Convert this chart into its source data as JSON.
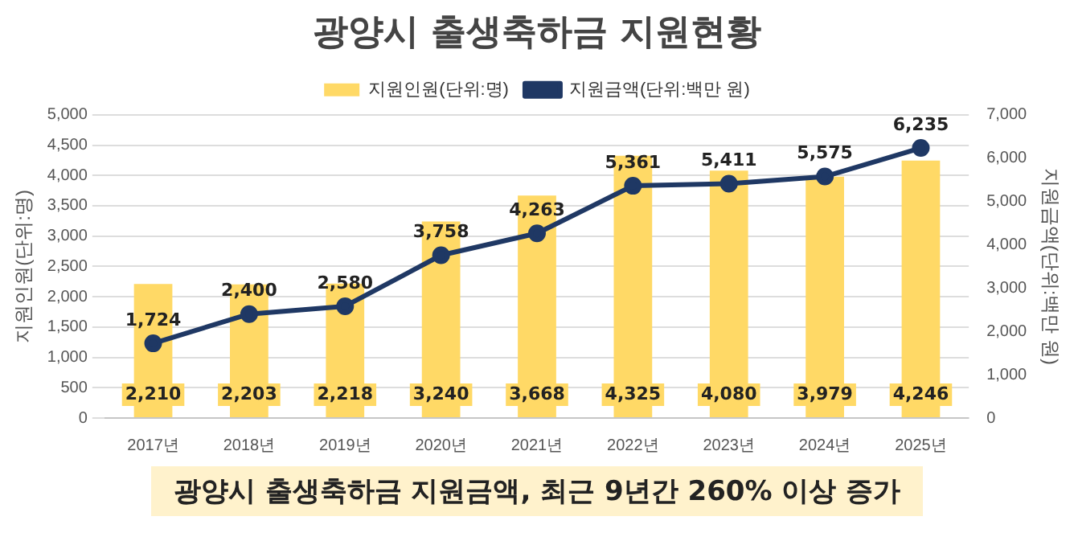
{
  "chart_data": {
    "type": "bar",
    "title": "광양시 출생축하금 지원현황",
    "xlabel": null,
    "ylabel": "지원인원(단위:명)",
    "y2label": "지원금액(단위:백만 원)",
    "categories": [
      "2017년",
      "2018년",
      "2019년",
      "2020년",
      "2021년",
      "2022년",
      "2023년",
      "2024년",
      "2025년"
    ],
    "series": [
      {
        "name": "지원인원(단위:명)",
        "color": "#ffd966",
        "values": [
          2210,
          2203,
          2218,
          3240,
          3668,
          4325,
          4080,
          3979,
          4246
        ],
        "value_labels": [
          "2,210",
          "2,203",
          "2,218",
          "3,240",
          "3,668",
          "4,325",
          "4,080",
          "3,979",
          "4,246"
        ]
      },
      {
        "name": "지원금액(단위:백만 원)",
        "type": "line",
        "axis": "y2",
        "color": "#1f3864",
        "values": [
          1724,
          2400,
          2580,
          3758,
          4263,
          5361,
          5411,
          5575,
          6235
        ],
        "value_labels": [
          "1,724",
          "2,400",
          "2,580",
          "3,758",
          "4,263",
          "5,361",
          "5,411",
          "5,575",
          "6,235"
        ]
      }
    ],
    "ylim": [
      0,
      5000
    ],
    "yticks": [
      {
        "value": 0,
        "label": "0"
      },
      {
        "value": 500,
        "label": "500"
      },
      {
        "value": 1000,
        "label": "1,000"
      },
      {
        "value": 1500,
        "label": "1,500"
      },
      {
        "value": 2000,
        "label": "2,000"
      },
      {
        "value": 2500,
        "label": "2,500"
      },
      {
        "value": 3000,
        "label": "3,000"
      },
      {
        "value": 3500,
        "label": "3,500"
      },
      {
        "value": 4000,
        "label": "4,000"
      },
      {
        "value": 4500,
        "label": "4,500"
      },
      {
        "value": 5000,
        "label": "5,000"
      }
    ],
    "y2lim": [
      0,
      7000
    ],
    "y2ticks": [
      {
        "value": 0,
        "label": "0"
      },
      {
        "value": 1000,
        "label": "1,000"
      },
      {
        "value": 2000,
        "label": "2,000"
      },
      {
        "value": 3000,
        "label": "3,000"
      },
      {
        "value": 4000,
        "label": "4,000"
      },
      {
        "value": 5000,
        "label": "5,000"
      },
      {
        "value": 6000,
        "label": "6,000"
      },
      {
        "value": 7000,
        "label": "7,000"
      }
    ],
    "grid": "y",
    "legend": "top",
    "marker": "circle",
    "annotations": [
      "광양시 출생축하금 지원금액, 최근 9년간 260% 이상 증가"
    ]
  }
}
